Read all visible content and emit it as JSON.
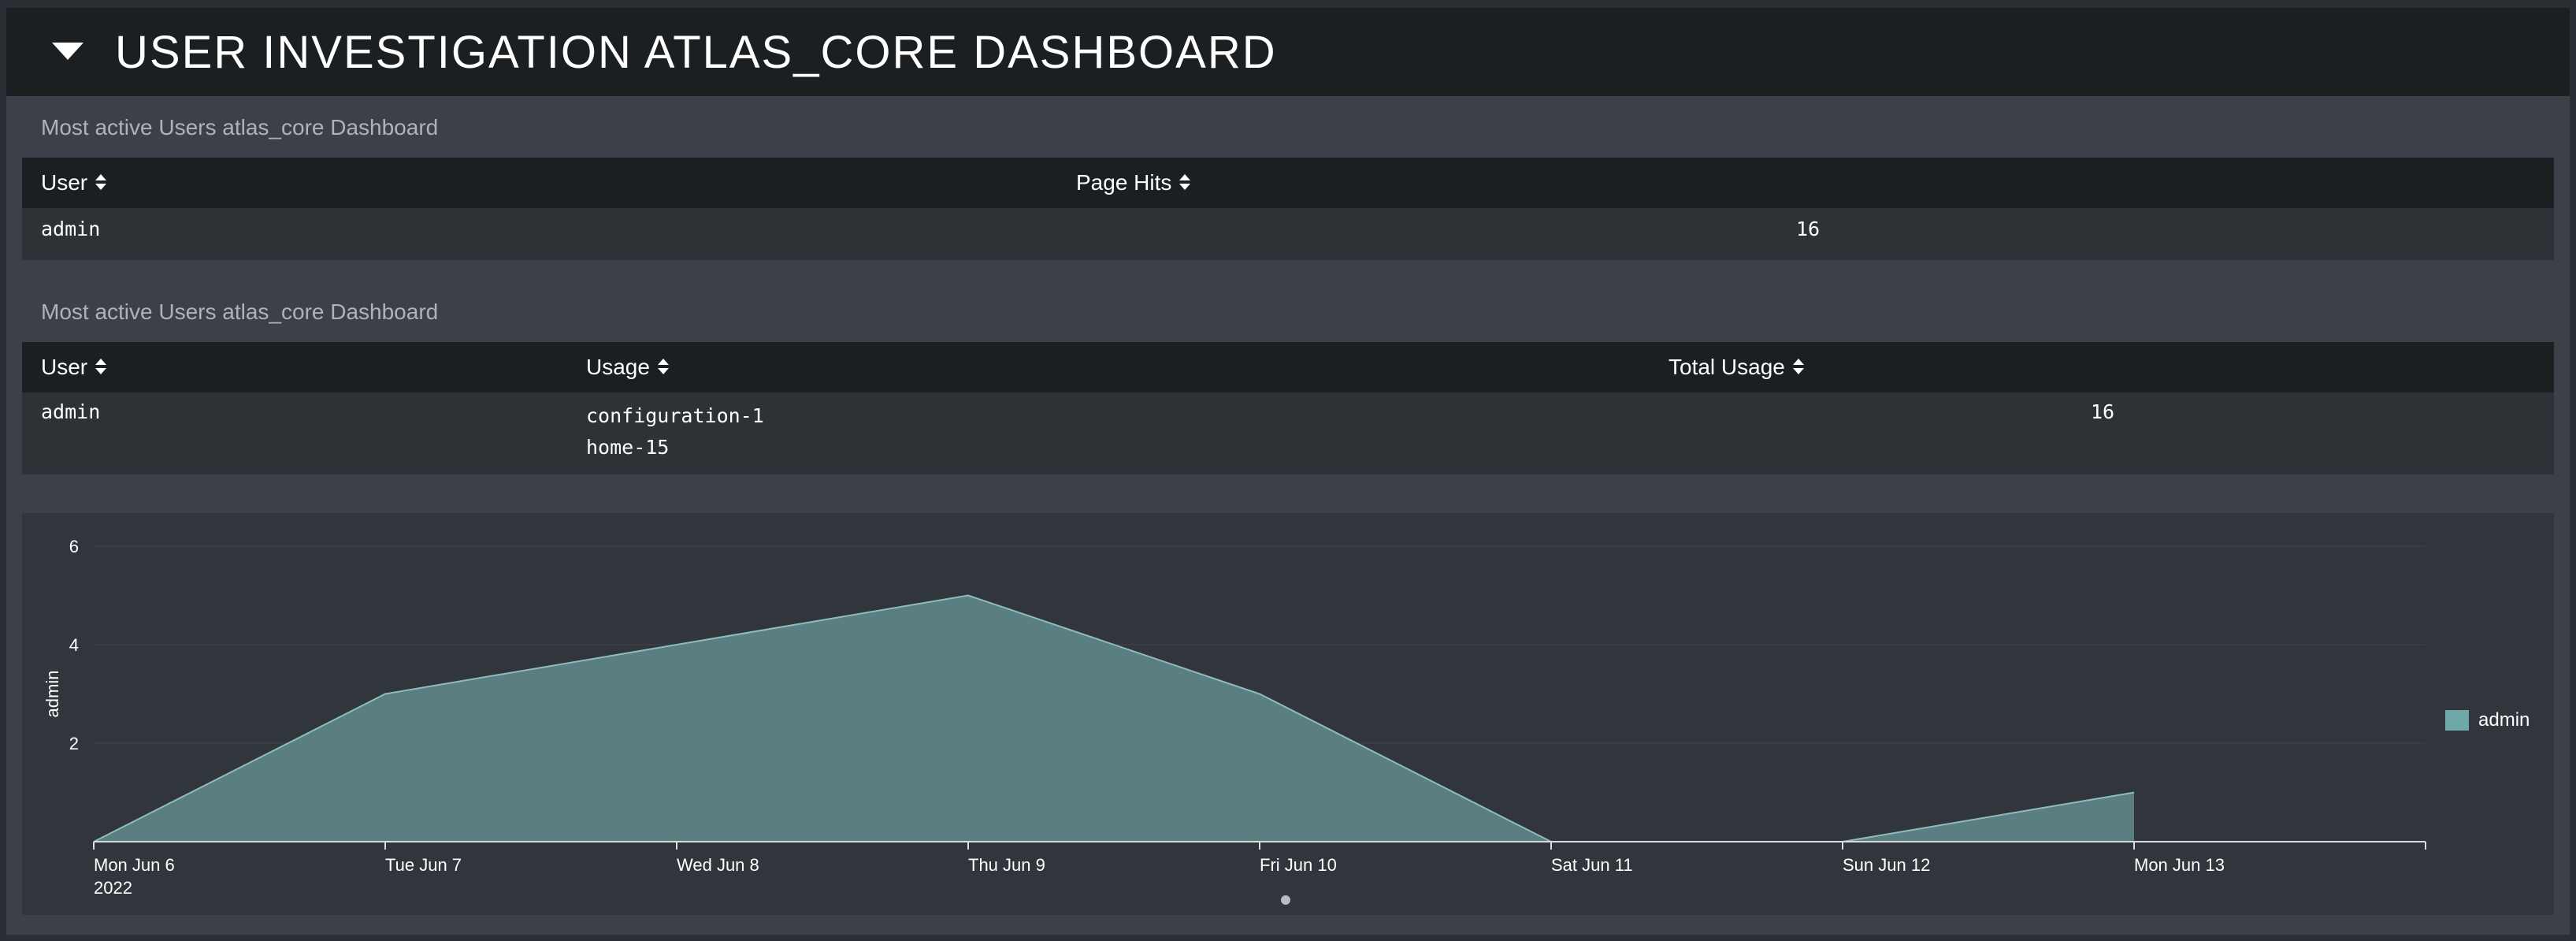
{
  "header": {
    "title": "USER INVESTIGATION ATLAS_CORE DASHBOARD",
    "toggle_icon": "caret-down-icon"
  },
  "panel1": {
    "title": "Most active Users atlas_core Dashboard",
    "columns": [
      "User",
      "Page Hits"
    ],
    "rows": [
      {
        "user": "admin",
        "page_hits": "16"
      }
    ]
  },
  "panel2": {
    "title": "Most active Users atlas_core Dashboard",
    "columns": [
      "User",
      "Usage",
      "Total Usage"
    ],
    "rows": [
      {
        "user": "admin",
        "usage": [
          "configuration-1",
          "home-15"
        ],
        "total_usage": "16"
      }
    ]
  },
  "chart_data": {
    "type": "area",
    "ylabel": "admin",
    "xlabel": "",
    "x": [
      "Mon Jun 6",
      "Tue Jun 7",
      "Wed Jun 8",
      "Thu Jun 9",
      "Fri Jun 10",
      "Sat Jun 11",
      "Sun Jun 12",
      "Mon Jun 13"
    ],
    "x_first_sublabel": "2022",
    "y_ticks": [
      2,
      4,
      6
    ],
    "ylim": [
      0,
      6
    ],
    "series": [
      {
        "name": "admin",
        "values": [
          0,
          3,
          4,
          5,
          3,
          0,
          0,
          1
        ],
        "color": "#6fa8a8"
      }
    ],
    "legend": "right",
    "grid": true
  },
  "colors": {
    "header_bg": "#1b1f22",
    "panel_bg": "#3c4049",
    "row_bg": "#2e3136",
    "area_fill": "#5b7f80",
    "area_line": "#8fbcbc"
  }
}
